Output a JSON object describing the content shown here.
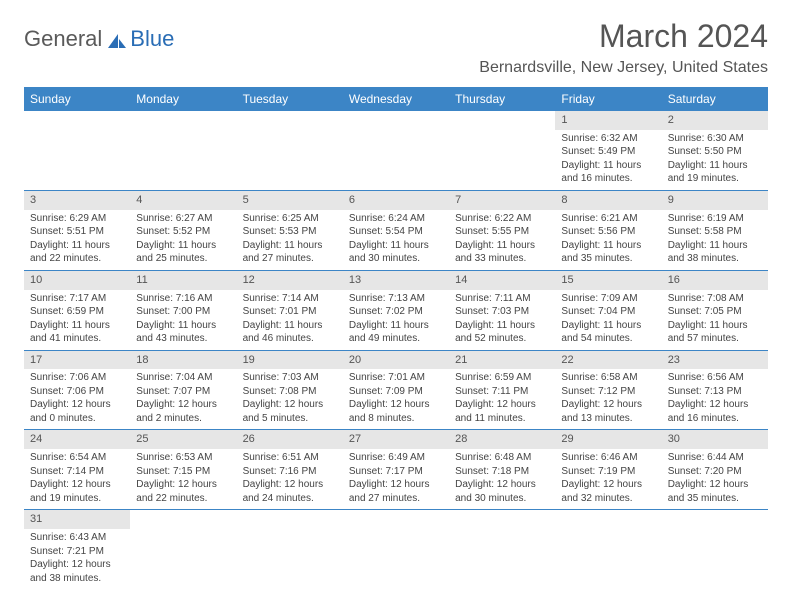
{
  "logo": {
    "word1": "General",
    "word2": "Blue"
  },
  "title": "March 2024",
  "location": "Bernardsville, New Jersey, United States",
  "colors": {
    "header_bg": "#3c85c6",
    "header_text": "#ffffff",
    "daynum_bg": "#e6e6e6",
    "border": "#3c85c6",
    "text": "#444444"
  },
  "weekdays": [
    "Sunday",
    "Monday",
    "Tuesday",
    "Wednesday",
    "Thursday",
    "Friday",
    "Saturday"
  ],
  "weeks": [
    [
      null,
      null,
      null,
      null,
      null,
      {
        "n": "1",
        "sr": "Sunrise: 6:32 AM",
        "ss": "Sunset: 5:49 PM",
        "d1": "Daylight: 11 hours",
        "d2": "and 16 minutes."
      },
      {
        "n": "2",
        "sr": "Sunrise: 6:30 AM",
        "ss": "Sunset: 5:50 PM",
        "d1": "Daylight: 11 hours",
        "d2": "and 19 minutes."
      }
    ],
    [
      {
        "n": "3",
        "sr": "Sunrise: 6:29 AM",
        "ss": "Sunset: 5:51 PM",
        "d1": "Daylight: 11 hours",
        "d2": "and 22 minutes."
      },
      {
        "n": "4",
        "sr": "Sunrise: 6:27 AM",
        "ss": "Sunset: 5:52 PM",
        "d1": "Daylight: 11 hours",
        "d2": "and 25 minutes."
      },
      {
        "n": "5",
        "sr": "Sunrise: 6:25 AM",
        "ss": "Sunset: 5:53 PM",
        "d1": "Daylight: 11 hours",
        "d2": "and 27 minutes."
      },
      {
        "n": "6",
        "sr": "Sunrise: 6:24 AM",
        "ss": "Sunset: 5:54 PM",
        "d1": "Daylight: 11 hours",
        "d2": "and 30 minutes."
      },
      {
        "n": "7",
        "sr": "Sunrise: 6:22 AM",
        "ss": "Sunset: 5:55 PM",
        "d1": "Daylight: 11 hours",
        "d2": "and 33 minutes."
      },
      {
        "n": "8",
        "sr": "Sunrise: 6:21 AM",
        "ss": "Sunset: 5:56 PM",
        "d1": "Daylight: 11 hours",
        "d2": "and 35 minutes."
      },
      {
        "n": "9",
        "sr": "Sunrise: 6:19 AM",
        "ss": "Sunset: 5:58 PM",
        "d1": "Daylight: 11 hours",
        "d2": "and 38 minutes."
      }
    ],
    [
      {
        "n": "10",
        "sr": "Sunrise: 7:17 AM",
        "ss": "Sunset: 6:59 PM",
        "d1": "Daylight: 11 hours",
        "d2": "and 41 minutes."
      },
      {
        "n": "11",
        "sr": "Sunrise: 7:16 AM",
        "ss": "Sunset: 7:00 PM",
        "d1": "Daylight: 11 hours",
        "d2": "and 43 minutes."
      },
      {
        "n": "12",
        "sr": "Sunrise: 7:14 AM",
        "ss": "Sunset: 7:01 PM",
        "d1": "Daylight: 11 hours",
        "d2": "and 46 minutes."
      },
      {
        "n": "13",
        "sr": "Sunrise: 7:13 AM",
        "ss": "Sunset: 7:02 PM",
        "d1": "Daylight: 11 hours",
        "d2": "and 49 minutes."
      },
      {
        "n": "14",
        "sr": "Sunrise: 7:11 AM",
        "ss": "Sunset: 7:03 PM",
        "d1": "Daylight: 11 hours",
        "d2": "and 52 minutes."
      },
      {
        "n": "15",
        "sr": "Sunrise: 7:09 AM",
        "ss": "Sunset: 7:04 PM",
        "d1": "Daylight: 11 hours",
        "d2": "and 54 minutes."
      },
      {
        "n": "16",
        "sr": "Sunrise: 7:08 AM",
        "ss": "Sunset: 7:05 PM",
        "d1": "Daylight: 11 hours",
        "d2": "and 57 minutes."
      }
    ],
    [
      {
        "n": "17",
        "sr": "Sunrise: 7:06 AM",
        "ss": "Sunset: 7:06 PM",
        "d1": "Daylight: 12 hours",
        "d2": "and 0 minutes."
      },
      {
        "n": "18",
        "sr": "Sunrise: 7:04 AM",
        "ss": "Sunset: 7:07 PM",
        "d1": "Daylight: 12 hours",
        "d2": "and 2 minutes."
      },
      {
        "n": "19",
        "sr": "Sunrise: 7:03 AM",
        "ss": "Sunset: 7:08 PM",
        "d1": "Daylight: 12 hours",
        "d2": "and 5 minutes."
      },
      {
        "n": "20",
        "sr": "Sunrise: 7:01 AM",
        "ss": "Sunset: 7:09 PM",
        "d1": "Daylight: 12 hours",
        "d2": "and 8 minutes."
      },
      {
        "n": "21",
        "sr": "Sunrise: 6:59 AM",
        "ss": "Sunset: 7:11 PM",
        "d1": "Daylight: 12 hours",
        "d2": "and 11 minutes."
      },
      {
        "n": "22",
        "sr": "Sunrise: 6:58 AM",
        "ss": "Sunset: 7:12 PM",
        "d1": "Daylight: 12 hours",
        "d2": "and 13 minutes."
      },
      {
        "n": "23",
        "sr": "Sunrise: 6:56 AM",
        "ss": "Sunset: 7:13 PM",
        "d1": "Daylight: 12 hours",
        "d2": "and 16 minutes."
      }
    ],
    [
      {
        "n": "24",
        "sr": "Sunrise: 6:54 AM",
        "ss": "Sunset: 7:14 PM",
        "d1": "Daylight: 12 hours",
        "d2": "and 19 minutes."
      },
      {
        "n": "25",
        "sr": "Sunrise: 6:53 AM",
        "ss": "Sunset: 7:15 PM",
        "d1": "Daylight: 12 hours",
        "d2": "and 22 minutes."
      },
      {
        "n": "26",
        "sr": "Sunrise: 6:51 AM",
        "ss": "Sunset: 7:16 PM",
        "d1": "Daylight: 12 hours",
        "d2": "and 24 minutes."
      },
      {
        "n": "27",
        "sr": "Sunrise: 6:49 AM",
        "ss": "Sunset: 7:17 PM",
        "d1": "Daylight: 12 hours",
        "d2": "and 27 minutes."
      },
      {
        "n": "28",
        "sr": "Sunrise: 6:48 AM",
        "ss": "Sunset: 7:18 PM",
        "d1": "Daylight: 12 hours",
        "d2": "and 30 minutes."
      },
      {
        "n": "29",
        "sr": "Sunrise: 6:46 AM",
        "ss": "Sunset: 7:19 PM",
        "d1": "Daylight: 12 hours",
        "d2": "and 32 minutes."
      },
      {
        "n": "30",
        "sr": "Sunrise: 6:44 AM",
        "ss": "Sunset: 7:20 PM",
        "d1": "Daylight: 12 hours",
        "d2": "and 35 minutes."
      }
    ],
    [
      {
        "n": "31",
        "sr": "Sunrise: 6:43 AM",
        "ss": "Sunset: 7:21 PM",
        "d1": "Daylight: 12 hours",
        "d2": "and 38 minutes."
      },
      null,
      null,
      null,
      null,
      null,
      null
    ]
  ]
}
